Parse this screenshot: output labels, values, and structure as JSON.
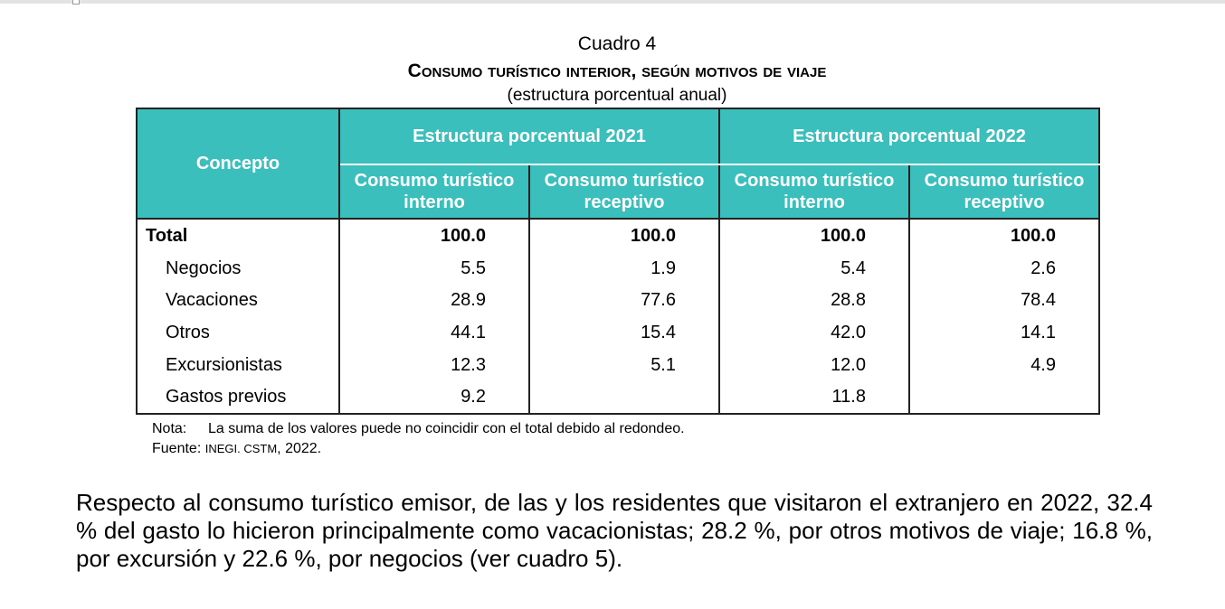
{
  "caption": {
    "number": "Cuadro 4",
    "title_lead": "C",
    "title_rest": "onsumo turístico interior, según motivos de viaje",
    "subtitle": "(estructura porcentual anual)"
  },
  "table": {
    "concept_header": "Concepto",
    "groups": [
      {
        "label": "Estructura porcentual 2021",
        "cols": [
          {
            "line1": "Consumo turístico",
            "line2": "interno"
          },
          {
            "line1": "Consumo turístico",
            "line2": "receptivo"
          }
        ]
      },
      {
        "label": "Estructura porcentual 2022",
        "cols": [
          {
            "line1": "Consumo turístico",
            "line2": "interno"
          },
          {
            "line1": "Consumo turístico",
            "line2": "receptivo"
          }
        ]
      }
    ],
    "rows": [
      {
        "label": "Total",
        "values": [
          "100.0",
          "100.0",
          "100.0",
          "100.0"
        ]
      },
      {
        "label": "Negocios",
        "values": [
          "5.5",
          "1.9",
          "5.4",
          "2.6"
        ]
      },
      {
        "label": "Vacaciones",
        "values": [
          "28.9",
          "77.6",
          "28.8",
          "78.4"
        ]
      },
      {
        "label": "Otros",
        "values": [
          "44.1",
          "15.4",
          "42.0",
          "14.1"
        ]
      },
      {
        "label": "Excursionistas",
        "values": [
          "12.3",
          "5.1",
          "12.0",
          "4.9"
        ]
      },
      {
        "label": "Gastos previos",
        "values": [
          "9.2",
          "",
          "11.8",
          ""
        ]
      }
    ]
  },
  "notes": {
    "note_label": "Nota:",
    "note_text": "La suma de los valores puede no coincidir con el total debido al redondeo.",
    "source_label": "Fuente:",
    "source_org": "INEGI. CSTM",
    "source_year": ", 2022."
  },
  "paragraph": "Respecto al consumo turístico emisor, de las y los residentes que visitaron el extranjero en 2022, 32.4 % del gasto lo hicieron principalmente como vacacionistas; 28.2 %, por otros motivos de viaje; 16.8 %, por excursión y 22.6 %, por negocios (ver cuadro 5)."
}
